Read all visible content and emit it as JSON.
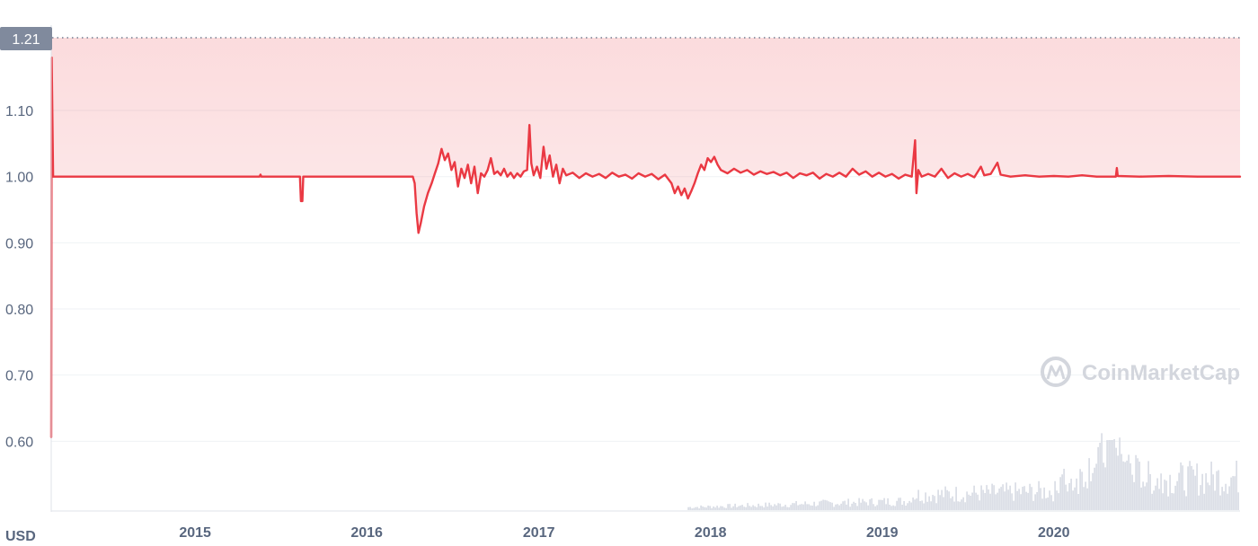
{
  "chart_data": {
    "type": "line",
    "unit_label": "USD",
    "x_range": [
      "2014-03-01",
      "2021-01-31"
    ],
    "ylim": [
      0.5,
      1.21
    ],
    "y_ticks": [
      "0.60",
      "0.70",
      "0.80",
      "0.90",
      "1.00",
      "1.10"
    ],
    "x_ticks": [
      "2015",
      "2016",
      "2017",
      "2018",
      "2019",
      "2020"
    ],
    "high_marker": "1.21",
    "grid": true,
    "line_color": "#ea3943",
    "volume_color": "#d7dbe4",
    "series": [
      {
        "values": [
          [
            "2014-03-01",
            0.606
          ],
          [
            "2014-03-02",
            1.18
          ],
          [
            "2014-03-05",
            1.0
          ],
          [
            "2015-05-18",
            1.0
          ],
          [
            "2015-05-20",
            1.003
          ],
          [
            "2015-05-22",
            1.0
          ],
          [
            "2015-08-12",
            1.0
          ],
          [
            "2015-08-14",
            0.963
          ],
          [
            "2015-08-17",
            0.963
          ],
          [
            "2015-08-19",
            1.0
          ],
          [
            "2016-04-08",
            1.0
          ],
          [
            "2016-04-12",
            0.99
          ],
          [
            "2016-04-16",
            0.945
          ],
          [
            "2016-04-20",
            0.915
          ],
          [
            "2016-04-25",
            0.93
          ],
          [
            "2016-05-02",
            0.955
          ],
          [
            "2016-05-10",
            0.975
          ],
          [
            "2016-05-18",
            0.99
          ],
          [
            "2016-05-25",
            1.005
          ],
          [
            "2016-06-01",
            1.02
          ],
          [
            "2016-06-08",
            1.042
          ],
          [
            "2016-06-15",
            1.025
          ],
          [
            "2016-06-22",
            1.035
          ],
          [
            "2016-06-29",
            1.01
          ],
          [
            "2016-07-06",
            1.022
          ],
          [
            "2016-07-13",
            0.985
          ],
          [
            "2016-07-20",
            1.012
          ],
          [
            "2016-07-27",
            0.998
          ],
          [
            "2016-08-03",
            1.018
          ],
          [
            "2016-08-10",
            0.99
          ],
          [
            "2016-08-17",
            1.015
          ],
          [
            "2016-08-24",
            0.975
          ],
          [
            "2016-08-31",
            1.005
          ],
          [
            "2016-09-07",
            1.0
          ],
          [
            "2016-09-14",
            1.01
          ],
          [
            "2016-09-21",
            1.028
          ],
          [
            "2016-09-28",
            1.004
          ],
          [
            "2016-10-05",
            1.008
          ],
          [
            "2016-10-12",
            1.002
          ],
          [
            "2016-10-19",
            1.012
          ],
          [
            "2016-10-26",
            1.0
          ],
          [
            "2016-11-02",
            1.006
          ],
          [
            "2016-11-09",
            0.998
          ],
          [
            "2016-11-16",
            1.005
          ],
          [
            "2016-11-23",
            1.0
          ],
          [
            "2016-11-30",
            1.008
          ],
          [
            "2016-12-07",
            1.01
          ],
          [
            "2016-12-12",
            1.078
          ],
          [
            "2016-12-16",
            1.02
          ],
          [
            "2016-12-21",
            1.002
          ],
          [
            "2016-12-28",
            1.015
          ],
          [
            "2017-01-04",
            0.998
          ],
          [
            "2017-01-11",
            1.045
          ],
          [
            "2017-01-17",
            1.012
          ],
          [
            "2017-01-24",
            1.032
          ],
          [
            "2017-01-31",
            1.0
          ],
          [
            "2017-02-07",
            1.018
          ],
          [
            "2017-02-14",
            0.99
          ],
          [
            "2017-02-21",
            1.012
          ],
          [
            "2017-02-28",
            1.002
          ],
          [
            "2017-03-14",
            1.006
          ],
          [
            "2017-03-28",
            0.998
          ],
          [
            "2017-04-11",
            1.005
          ],
          [
            "2017-04-25",
            1.0
          ],
          [
            "2017-05-09",
            1.004
          ],
          [
            "2017-05-23",
            0.998
          ],
          [
            "2017-06-06",
            1.006
          ],
          [
            "2017-06-20",
            1.0
          ],
          [
            "2017-07-04",
            1.003
          ],
          [
            "2017-07-18",
            0.997
          ],
          [
            "2017-08-01",
            1.005
          ],
          [
            "2017-08-15",
            1.0
          ],
          [
            "2017-08-29",
            1.004
          ],
          [
            "2017-09-12",
            0.996
          ],
          [
            "2017-09-26",
            1.003
          ],
          [
            "2017-10-10",
            0.99
          ],
          [
            "2017-10-17",
            0.975
          ],
          [
            "2017-10-24",
            0.985
          ],
          [
            "2017-10-31",
            0.972
          ],
          [
            "2017-11-07",
            0.982
          ],
          [
            "2017-11-14",
            0.967
          ],
          [
            "2017-11-21",
            0.978
          ],
          [
            "2017-11-28",
            0.99
          ],
          [
            "2017-12-05",
            1.005
          ],
          [
            "2017-12-12",
            1.018
          ],
          [
            "2017-12-19",
            1.01
          ],
          [
            "2017-12-26",
            1.028
          ],
          [
            "2018-01-02",
            1.022
          ],
          [
            "2018-01-09",
            1.03
          ],
          [
            "2018-01-16",
            1.018
          ],
          [
            "2018-01-23",
            1.01
          ],
          [
            "2018-02-06",
            1.005
          ],
          [
            "2018-02-20",
            1.012
          ],
          [
            "2018-03-06",
            1.006
          ],
          [
            "2018-03-20",
            1.01
          ],
          [
            "2018-04-03",
            1.003
          ],
          [
            "2018-04-17",
            1.008
          ],
          [
            "2018-05-01",
            1.004
          ],
          [
            "2018-05-15",
            1.007
          ],
          [
            "2018-05-29",
            1.002
          ],
          [
            "2018-06-12",
            1.006
          ],
          [
            "2018-06-26",
            0.998
          ],
          [
            "2018-07-10",
            1.005
          ],
          [
            "2018-07-24",
            1.002
          ],
          [
            "2018-08-07",
            1.006
          ],
          [
            "2018-08-21",
            0.997
          ],
          [
            "2018-09-04",
            1.004
          ],
          [
            "2018-09-18",
            1.0
          ],
          [
            "2018-10-02",
            1.006
          ],
          [
            "2018-10-16",
            1.0
          ],
          [
            "2018-10-30",
            1.012
          ],
          [
            "2018-11-13",
            1.003
          ],
          [
            "2018-11-27",
            1.008
          ],
          [
            "2018-12-11",
            1.0
          ],
          [
            "2018-12-25",
            1.006
          ],
          [
            "2019-01-08",
            1.0
          ],
          [
            "2019-01-22",
            1.004
          ],
          [
            "2019-02-05",
            0.997
          ],
          [
            "2019-02-19",
            1.003
          ],
          [
            "2019-03-05",
            1.0
          ],
          [
            "2019-03-12",
            1.055
          ],
          [
            "2019-03-15",
            0.975
          ],
          [
            "2019-03-19",
            1.01
          ],
          [
            "2019-03-26",
            1.0
          ],
          [
            "2019-04-09",
            1.004
          ],
          [
            "2019-04-23",
            1.0
          ],
          [
            "2019-05-07",
            1.012
          ],
          [
            "2019-05-21",
            0.998
          ],
          [
            "2019-06-04",
            1.005
          ],
          [
            "2019-06-18",
            1.0
          ],
          [
            "2019-07-02",
            1.004
          ],
          [
            "2019-07-16",
            0.999
          ],
          [
            "2019-07-30",
            1.015
          ],
          [
            "2019-08-06",
            1.002
          ],
          [
            "2019-08-20",
            1.004
          ],
          [
            "2019-09-03",
            1.021
          ],
          [
            "2019-09-10",
            1.003
          ],
          [
            "2019-10-01",
            1.0
          ],
          [
            "2019-11-01",
            1.002
          ],
          [
            "2019-12-01",
            1.0
          ],
          [
            "2020-01-01",
            1.001
          ],
          [
            "2020-02-01",
            1.0
          ],
          [
            "2020-03-01",
            1.002
          ],
          [
            "2020-04-01",
            1.0
          ],
          [
            "2020-05-12",
            1.0
          ],
          [
            "2020-05-14",
            1.013
          ],
          [
            "2020-05-16",
            1.001
          ],
          [
            "2020-07-01",
            1.0
          ],
          [
            "2020-09-01",
            1.001
          ],
          [
            "2020-11-01",
            1.0
          ],
          [
            "2021-01-31",
            1.0
          ]
        ]
      }
    ]
  },
  "watermark": {
    "text": "CoinMarketCap",
    "icon": "coinmarketcap-logo"
  }
}
